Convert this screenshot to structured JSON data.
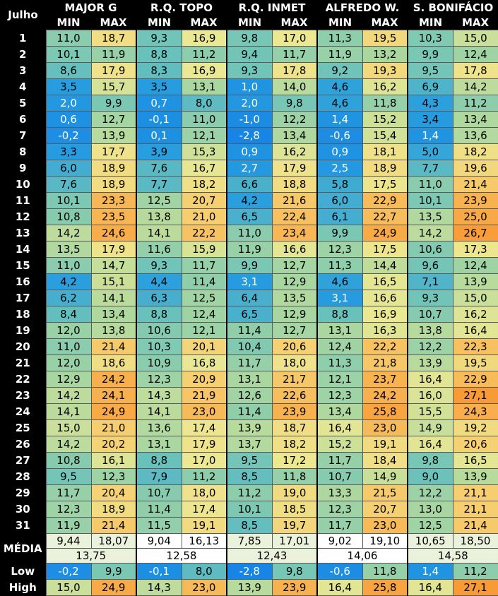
{
  "header": {
    "corner": "Julho",
    "min_label": "MIN",
    "max_label": "MAX",
    "stations": [
      "MAJOR G",
      "R.Q. TOPO",
      "R.Q. INMET",
      "ALFREDO W.",
      "S. BONIFÁCIO"
    ]
  },
  "days": [
    {
      "day": "1",
      "v": [
        "11,0",
        "18,7",
        "9,3",
        "16,9",
        "9,8",
        "17,0",
        "11,3",
        "19,5",
        "10,3",
        "15,0"
      ]
    },
    {
      "day": "2",
      "v": [
        "10,1",
        "11,9",
        "8,8",
        "11,2",
        "9,4",
        "11,7",
        "11,9",
        "13,2",
        "9,9",
        "12,4"
      ]
    },
    {
      "day": "3",
      "v": [
        "8,6",
        "17,9",
        "8,3",
        "16,9",
        "9,3",
        "17,8",
        "9,2",
        "19,3",
        "9,5",
        "17,8"
      ]
    },
    {
      "day": "4",
      "v": [
        "3,5",
        "15,7",
        "3,5",
        "13,1",
        "1,0",
        "14,0",
        "4,6",
        "16,2",
        "6,9",
        "14,2"
      ]
    },
    {
      "day": "5",
      "v": [
        "2,0",
        "9,9",
        "0,7",
        "8,0",
        "2,0",
        "9,8",
        "4,6",
        "11,8",
        "4,3",
        "11,2"
      ]
    },
    {
      "day": "6",
      "v": [
        "0,6",
        "12,7",
        "-0,1",
        "11,0",
        "-1,0",
        "12,2",
        "1,4",
        "15,2",
        "3,4",
        "13,4"
      ]
    },
    {
      "day": "7",
      "v": [
        "-0,2",
        "13,9",
        "0,1",
        "12,1",
        "-2,8",
        "13,4",
        "-0,6",
        "15,4",
        "1,4",
        "13,6"
      ]
    },
    {
      "day": "8",
      "v": [
        "3,3",
        "17,7",
        "3,9",
        "15,3",
        "0,9",
        "16,2",
        "0,9",
        "18,1",
        "5,0",
        "18,2"
      ]
    },
    {
      "day": "9",
      "v": [
        "6,0",
        "18,9",
        "7,6",
        "16,7",
        "2,7",
        "17,9",
        "2,5",
        "18,9",
        "7,7",
        "19,6"
      ]
    },
    {
      "day": "10",
      "v": [
        "7,6",
        "18,9",
        "7,7",
        "18,2",
        "6,6",
        "18,8",
        "5,8",
        "17,5",
        "11,0",
        "21,4"
      ]
    },
    {
      "day": "11",
      "v": [
        "10,1",
        "23,3",
        "12,5",
        "20,7",
        "4,2",
        "21,6",
        "6,0",
        "22,9",
        "10,1",
        "23,9"
      ]
    },
    {
      "day": "12",
      "v": [
        "10,8",
        "23,5",
        "13,8",
        "21,0",
        "6,5",
        "22,4",
        "6,1",
        "22,7",
        "13,5",
        "25,0"
      ]
    },
    {
      "day": "13",
      "v": [
        "14,2",
        "24,6",
        "14,1",
        "22,2",
        "11,0",
        "23,4",
        "9,9",
        "24,9",
        "14,2",
        "26,7"
      ]
    },
    {
      "day": "14",
      "v": [
        "13,5",
        "17,9",
        "11,6",
        "15,9",
        "11,9",
        "16,6",
        "12,3",
        "17,5",
        "10,6",
        "17,3"
      ]
    },
    {
      "day": "15",
      "v": [
        "11,0",
        "14,7",
        "9,3",
        "11,7",
        "9,9",
        "12,7",
        "11,3",
        "14,4",
        "9,6",
        "12,4"
      ]
    },
    {
      "day": "16",
      "v": [
        "4,2",
        "15,1",
        "4,4",
        "11,4",
        "3,1",
        "12,9",
        "4,6",
        "16,5",
        "7,1",
        "13,9"
      ]
    },
    {
      "day": "17",
      "v": [
        "6,2",
        "14,1",
        "6,3",
        "12,5",
        "6,4",
        "13,5",
        "3,1",
        "16,6",
        "9,3",
        "15,0"
      ]
    },
    {
      "day": "18",
      "v": [
        "8,4",
        "13,4",
        "8,8",
        "12,4",
        "6,5",
        "12,9",
        "8,8",
        "16,9",
        "10,7",
        "16,2"
      ]
    },
    {
      "day": "19",
      "v": [
        "12,0",
        "13,8",
        "10,6",
        "12,1",
        "11,4",
        "12,7",
        "13,1",
        "16,3",
        "13,8",
        "16,4"
      ]
    },
    {
      "day": "20",
      "v": [
        "11,0",
        "21,4",
        "10,3",
        "20,1",
        "10,4",
        "20,6",
        "12,4",
        "22,2",
        "12,2",
        "22,3"
      ]
    },
    {
      "day": "21",
      "v": [
        "12,0",
        "18,6",
        "10,9",
        "16,8",
        "11,7",
        "18,0",
        "11,3",
        "21,8",
        "13,9",
        "19,5"
      ]
    },
    {
      "day": "22",
      "v": [
        "12,9",
        "24,2",
        "12,3",
        "20,9",
        "13,1",
        "21,7",
        "12,1",
        "23,7",
        "16,4",
        "22,9"
      ]
    },
    {
      "day": "23",
      "v": [
        "14,2",
        "24,1",
        "14,3",
        "21,9",
        "12,6",
        "22,6",
        "12,3",
        "24,2",
        "16,0",
        "27,1"
      ]
    },
    {
      "day": "24",
      "v": [
        "14,1",
        "24,9",
        "14,1",
        "23,0",
        "11,4",
        "23,9",
        "13,4",
        "25,8",
        "15,5",
        "24,3"
      ]
    },
    {
      "day": "25",
      "v": [
        "15,0",
        "21,0",
        "13,6",
        "17,4",
        "13,9",
        "18,7",
        "16,4",
        "23,0",
        "14,9",
        "19,2"
      ]
    },
    {
      "day": "26",
      "v": [
        "14,2",
        "20,2",
        "13,1",
        "17,9",
        "13,7",
        "18,2",
        "15,2",
        "19,1",
        "16,4",
        "20,6"
      ]
    },
    {
      "day": "27",
      "v": [
        "10,8",
        "16,1",
        "8,8",
        "17,0",
        "9,5",
        "17,2",
        "11,7",
        "18,4",
        "9,8",
        "16,5"
      ]
    },
    {
      "day": "28",
      "v": [
        "9,5",
        "12,3",
        "7,9",
        "11,2",
        "8,5",
        "11,8",
        "10,7",
        "14,9",
        "9,0",
        "13,9"
      ]
    },
    {
      "day": "29",
      "v": [
        "11,7",
        "20,4",
        "10,7",
        "18,0",
        "11,2",
        "19,0",
        "13,3",
        "21,5",
        "12,2",
        "21,1"
      ]
    },
    {
      "day": "30",
      "v": [
        "12,3",
        "18,9",
        "11,4",
        "17,4",
        "10,1",
        "18,5",
        "12,3",
        "20,7",
        "13,0",
        "21,1"
      ]
    },
    {
      "day": "31",
      "v": [
        "11,9",
        "21,4",
        "11,5",
        "19,1",
        "8,5",
        "19,7",
        "11,7",
        "23,0",
        "12,5",
        "21,4"
      ]
    }
  ],
  "media": {
    "label": "MÉDIA",
    "values": [
      "9,44",
      "18,07",
      "9,04",
      "16,13",
      "7,85",
      "17,01",
      "9,02",
      "19,10",
      "10,65",
      "18,50"
    ],
    "overall": [
      "13,75",
      "12,58",
      "12,43",
      "14,06",
      "14,58"
    ]
  },
  "low": {
    "label": "Low",
    "values": [
      "-0,2",
      "9,9",
      "-0,1",
      "8,0",
      "-2,8",
      "9,8",
      "-0,6",
      "11,8",
      "1,4",
      "11,2"
    ]
  },
  "high": {
    "label": "High",
    "values": [
      "15,0",
      "24,9",
      "14,3",
      "23,0",
      "13,9",
      "23,9",
      "16,4",
      "25,8",
      "16,4",
      "27,1"
    ]
  }
}
